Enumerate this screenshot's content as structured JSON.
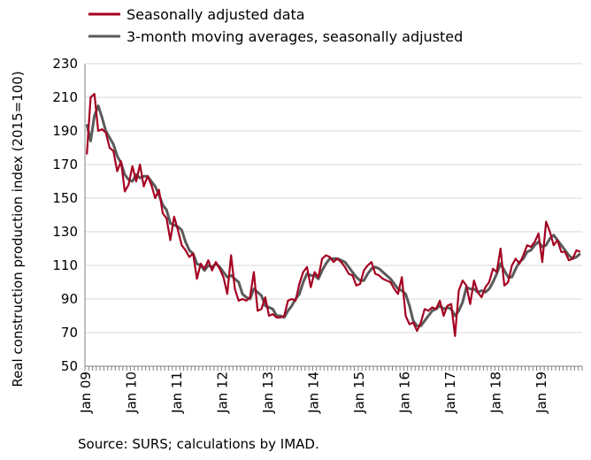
{
  "chart_data": {
    "type": "line",
    "ylabel": "Real construction production index (2015=100)",
    "ylim": [
      50,
      230
    ],
    "yticks": [
      50,
      70,
      90,
      110,
      130,
      150,
      170,
      190,
      210,
      230
    ],
    "xtick_labels": [
      "Jan 09",
      "Jan 10",
      "Jan 11",
      "Jan 12",
      "Jan 13",
      "Jan 14",
      "Jan 15",
      "Jan 16",
      "Jan 17",
      "Jan 18",
      "Jan 19"
    ],
    "x_start": "Jan 2009",
    "grid": "horizontal",
    "legend_position": "top-left",
    "source": "Source: SURS; calculations by IMAD.",
    "series": [
      {
        "name": "Seasonally adjusted data",
        "color": "#a50021",
        "values": [
          176,
          210,
          212,
          190,
          191,
          189,
          180,
          178,
          166,
          172,
          154,
          158,
          169,
          160,
          170,
          157,
          163,
          158,
          150,
          155,
          141,
          138,
          125,
          139,
          131,
          122,
          119,
          115,
          117,
          102,
          111,
          108,
          113,
          107,
          112,
          108,
          103,
          93,
          116,
          96,
          89,
          90,
          89,
          91,
          106,
          83,
          84,
          91,
          80,
          81,
          79,
          79,
          80,
          89,
          90,
          89,
          99,
          106,
          109,
          97,
          106,
          103,
          114,
          116,
          115,
          112,
          114,
          112,
          109,
          105,
          104,
          98,
          99,
          107,
          110,
          112,
          105,
          104,
          102,
          101,
          100,
          96,
          93,
          103,
          80,
          75,
          76,
          71,
          76,
          84,
          83,
          85,
          84,
          89,
          80,
          86,
          87,
          68,
          95,
          101,
          98,
          87,
          101,
          94,
          91,
          97,
          100,
          108,
          106,
          120,
          98,
          100,
          110,
          114,
          111,
          116,
          122,
          121,
          124,
          129,
          112,
          136,
          130,
          122,
          125,
          118,
          118,
          113,
          114,
          119,
          118
        ]
      },
      {
        "name": "3-month moving averages, seasonally adjusted",
        "color": "#5a5a5a",
        "values": [
          194,
          184,
          199,
          205,
          198,
          190,
          186,
          182,
          175,
          171,
          164,
          161,
          160,
          164,
          162,
          163,
          163,
          160,
          157,
          152,
          146,
          143,
          135,
          134,
          133,
          131,
          124,
          119,
          117,
          111,
          110,
          107,
          110,
          109,
          111,
          109,
          106,
          103,
          104,
          102,
          100,
          93,
          91,
          90,
          96,
          94,
          92,
          86,
          85,
          84,
          80,
          80,
          79,
          83,
          86,
          90,
          93,
          100,
          105,
          104,
          104,
          102,
          107,
          111,
          114,
          114,
          114,
          113,
          112,
          109,
          106,
          103,
          101,
          101,
          105,
          108,
          109,
          108,
          106,
          104,
          102,
          99,
          96,
          95,
          93,
          86,
          77,
          74,
          74,
          77,
          80,
          83,
          84,
          86,
          84,
          85,
          84,
          80,
          83,
          88,
          97,
          96,
          96,
          94,
          95,
          94,
          96,
          100,
          105,
          111,
          107,
          103,
          103,
          108,
          112,
          114,
          118,
          119,
          122,
          124,
          121,
          122,
          126,
          128,
          125,
          122,
          119,
          116,
          114,
          115,
          117
        ]
      }
    ]
  }
}
